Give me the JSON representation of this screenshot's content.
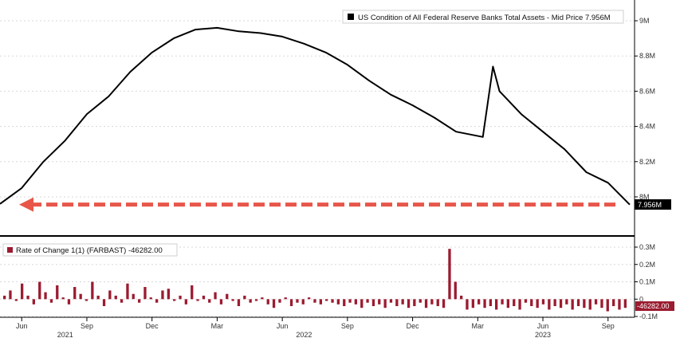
{
  "chart_data": [
    {
      "type": "line",
      "legend": "US Condition of All Federal Reserve Banks Total Assets - Mid Price 7.956M",
      "last_value_label": "7.956M",
      "y_ticks": [
        "9M",
        "8.8M",
        "8.6M",
        "8.4M",
        "8.2M",
        "8M"
      ],
      "ylim": [
        7.95,
        9.05
      ],
      "x": [
        "2021-05",
        "2021-06",
        "2021-07",
        "2021-08",
        "2021-09",
        "2021-10",
        "2021-11",
        "2021-12",
        "2022-01",
        "2022-02",
        "2022-03",
        "2022-04",
        "2022-05",
        "2022-06",
        "2022-07",
        "2022-08",
        "2022-09",
        "2022-10",
        "2022-11",
        "2022-12",
        "2023-01",
        "2023-02",
        "2023-03-08",
        "2023-03-22",
        "2023-04",
        "2023-05",
        "2023-06",
        "2023-07",
        "2023-08",
        "2023-09",
        "2023-10"
      ],
      "values": [
        7.96,
        8.05,
        8.2,
        8.32,
        8.47,
        8.57,
        8.71,
        8.82,
        8.9,
        8.95,
        8.96,
        8.94,
        8.93,
        8.91,
        8.87,
        8.82,
        8.75,
        8.66,
        8.58,
        8.52,
        8.45,
        8.37,
        8.34,
        8.74,
        8.6,
        8.47,
        8.37,
        8.27,
        8.14,
        8.08,
        7.956
      ],
      "line_color": "#000000",
      "reference_arrow": {
        "level": 7.956,
        "color": "#e8564a",
        "style": "dashed"
      }
    },
    {
      "type": "bar",
      "legend": "Rate of Change 1(1) (FARBAST) -46282.00",
      "last_value_label": "-46282.00",
      "y_ticks": [
        "0.3M",
        "0.2M",
        "0.1M",
        "0",
        "-0.1M"
      ],
      "ylim": [
        -0.1,
        0.3
      ],
      "values": [
        0.02,
        0.05,
        -0.01,
        0.09,
        0.02,
        -0.03,
        0.1,
        0.04,
        -0.02,
        0.08,
        0.01,
        -0.03,
        0.07,
        0.03,
        -0.01,
        0.1,
        0.02,
        -0.04,
        0.05,
        0.02,
        -0.02,
        0.09,
        0.03,
        -0.02,
        0.07,
        0.01,
        -0.02,
        0.05,
        0.06,
        -0.01,
        0.02,
        -0.03,
        0.08,
        -0.01,
        0.02,
        -0.02,
        0.04,
        -0.03,
        0.03,
        -0.01,
        -0.04,
        0.02,
        -0.02,
        -0.01,
        0.01,
        -0.03,
        -0.05,
        -0.02,
        0.01,
        -0.04,
        -0.02,
        -0.03,
        0.01,
        -0.02,
        -0.03,
        -0.01,
        -0.02,
        -0.03,
        -0.04,
        -0.02,
        -0.03,
        -0.05,
        -0.02,
        -0.04,
        -0.03,
        -0.05,
        -0.02,
        -0.04,
        -0.03,
        -0.05,
        -0.04,
        -0.02,
        -0.05,
        -0.03,
        -0.04,
        -0.05,
        0.29,
        0.1,
        0.02,
        -0.06,
        -0.05,
        -0.03,
        -0.05,
        -0.04,
        -0.06,
        -0.03,
        -0.05,
        -0.04,
        -0.06,
        -0.02,
        -0.04,
        -0.05,
        -0.03,
        -0.06,
        -0.04,
        -0.05,
        -0.03,
        -0.06,
        -0.04,
        -0.05,
        -0.06,
        -0.03,
        -0.05,
        -0.07,
        -0.04,
        -0.06,
        -0.05
      ],
      "bar_color": "#9b1b30"
    }
  ],
  "x_axis": {
    "ticks": [
      {
        "label": "Jun",
        "date": "2021-06"
      },
      {
        "label": "Sep",
        "date": "2021-09"
      },
      {
        "label": "Dec",
        "date": "2021-12"
      },
      {
        "label": "Mar",
        "date": "2022-03"
      },
      {
        "label": "Jun",
        "date": "2022-06"
      },
      {
        "label": "Sep",
        "date": "2022-09"
      },
      {
        "label": "Dec",
        "date": "2022-12"
      },
      {
        "label": "Mar",
        "date": "2023-03"
      },
      {
        "label": "Jun",
        "date": "2023-06"
      },
      {
        "label": "Sep",
        "date": "2023-09"
      }
    ],
    "years": [
      {
        "label": "2021",
        "date": "2021-08"
      },
      {
        "label": "2022",
        "date": "2022-07"
      },
      {
        "label": "2023",
        "date": "2023-06"
      }
    ],
    "start": "2021-05",
    "end": "2023-10"
  }
}
